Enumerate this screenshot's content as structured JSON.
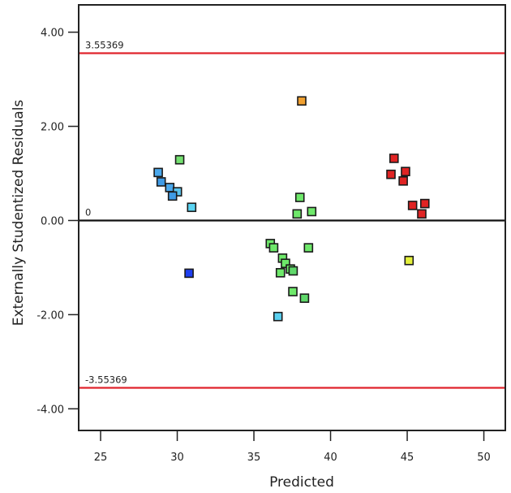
{
  "chart_data": {
    "type": "scatter",
    "title": "",
    "xlabel": "Predicted",
    "ylabel": "Externally Studentized Residuals",
    "xlim": [
      23.57,
      51.4
    ],
    "ylim": [
      -4.46,
      4.58
    ],
    "xticks": [
      25,
      30,
      35,
      40,
      45,
      50
    ],
    "xtick_labels": [
      "25",
      "30",
      "35",
      "40",
      "45",
      "50"
    ],
    "yticks": [
      4,
      2,
      0,
      -2,
      -4
    ],
    "ytick_labels": [
      "4.00",
      "2.00",
      "0.00",
      "-2.00",
      "-4.00"
    ],
    "grid": false,
    "reference_lines": [
      {
        "name": "upper-limit",
        "y": 3.55369,
        "label": "3.55369",
        "color": "#e0242c"
      },
      {
        "name": "zero",
        "y": 0,
        "label": "0",
        "color": "#111111"
      },
      {
        "name": "lower-limit",
        "y": -3.55369,
        "label": "-3.55369",
        "color": "#e0242c"
      }
    ],
    "points": [
      {
        "x": 30.16,
        "y": 1.29,
        "color": "#74e070"
      },
      {
        "x": 28.76,
        "y": 1.02,
        "color": "#4aa8ec"
      },
      {
        "x": 28.95,
        "y": 0.82,
        "color": "#3f9be6"
      },
      {
        "x": 29.51,
        "y": 0.7,
        "color": "#4aa8ec"
      },
      {
        "x": 30.01,
        "y": 0.61,
        "color": "#5cc4ee"
      },
      {
        "x": 29.69,
        "y": 0.52,
        "color": "#3f9be6"
      },
      {
        "x": 30.94,
        "y": 0.28,
        "color": "#5ad4f2"
      },
      {
        "x": 30.77,
        "y": -1.12,
        "color": "#1f3ff0"
      },
      {
        "x": 38.12,
        "y": 2.54,
        "color": "#f0a030"
      },
      {
        "x": 38.0,
        "y": 0.49,
        "color": "#6ee86a"
      },
      {
        "x": 37.82,
        "y": 0.14,
        "color": "#6ee86a"
      },
      {
        "x": 38.77,
        "y": 0.19,
        "color": "#6ee86a"
      },
      {
        "x": 36.07,
        "y": -0.49,
        "color": "#6ee86a"
      },
      {
        "x": 36.29,
        "y": -0.58,
        "color": "#6ee86a"
      },
      {
        "x": 38.56,
        "y": -0.58,
        "color": "#6ee86a"
      },
      {
        "x": 36.87,
        "y": -0.8,
        "color": "#6ee86a"
      },
      {
        "x": 37.06,
        "y": -0.91,
        "color": "#6ee86a"
      },
      {
        "x": 37.38,
        "y": -1.03,
        "color": "#6ee86a"
      },
      {
        "x": 37.56,
        "y": -1.07,
        "color": "#5fd86a"
      },
      {
        "x": 36.73,
        "y": -1.11,
        "color": "#6ee86a"
      },
      {
        "x": 37.54,
        "y": -1.51,
        "color": "#6ee86a"
      },
      {
        "x": 38.3,
        "y": -1.65,
        "color": "#5fd86a"
      },
      {
        "x": 36.57,
        "y": -2.04,
        "color": "#5ad0f0"
      },
      {
        "x": 44.14,
        "y": 1.32,
        "color": "#e02424"
      },
      {
        "x": 43.94,
        "y": 0.98,
        "color": "#e02424"
      },
      {
        "x": 44.89,
        "y": 1.04,
        "color": "#e02424"
      },
      {
        "x": 44.74,
        "y": 0.84,
        "color": "#e02424"
      },
      {
        "x": 45.35,
        "y": 0.32,
        "color": "#e02424"
      },
      {
        "x": 46.15,
        "y": 0.36,
        "color": "#e02424"
      },
      {
        "x": 45.95,
        "y": 0.14,
        "color": "#e02424"
      },
      {
        "x": 45.12,
        "y": -0.85,
        "color": "#e4f03c"
      }
    ]
  }
}
